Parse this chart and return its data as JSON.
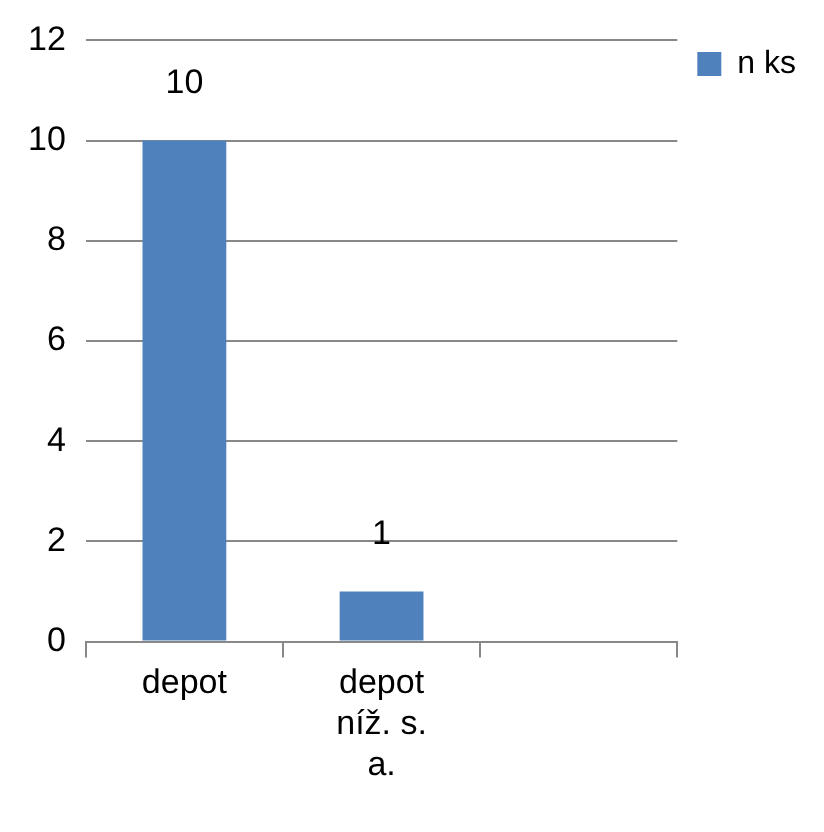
{
  "chart_data": {
    "type": "bar",
    "categories": [
      "depot",
      "depot níž. s. a.",
      null
    ],
    "series": [
      {
        "name": "n ks",
        "color": "#4f81bd",
        "values": [
          10,
          1,
          null
        ]
      }
    ],
    "ylim": [
      0,
      12
    ],
    "yticks": [
      0,
      2,
      4,
      6,
      8,
      10,
      12
    ],
    "grid": "y",
    "legend": "top right",
    "data_labels": true
  }
}
